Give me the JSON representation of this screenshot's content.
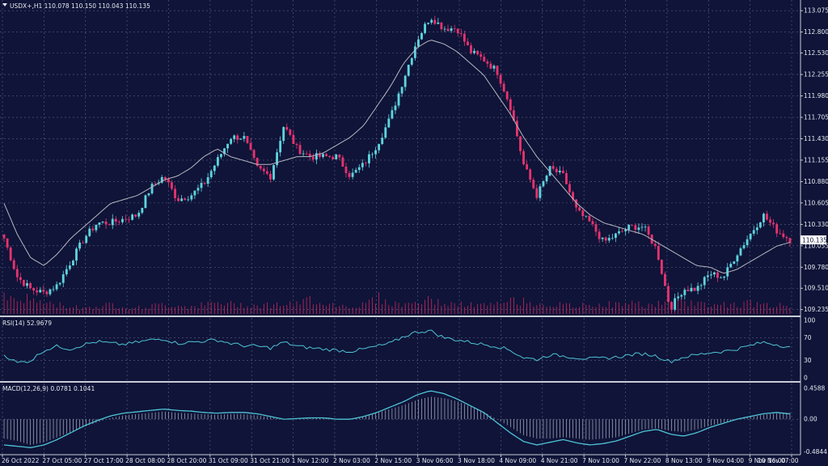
{
  "symbol_header": "USDX+,H1  110.078 110.150 110.043 110.135",
  "rsi_header": "RSI(14) 52.9679",
  "macd_header": "MACD(12,26,9) 0.0781 0.1041",
  "current_price": "110.135",
  "colors": {
    "background": "#0f1438",
    "grid": "#5a6285",
    "bull": "#5fd3de",
    "bear": "#e6336f",
    "ma": "#b8b8c0",
    "volume": "#c8285f",
    "indicator": "#4fc3d6",
    "axis_text": "#e6e8f0",
    "separator": "#c9ccd6",
    "price_tag_bg": "#ffffff",
    "price_tag_text": "#0f1438"
  },
  "chart_data": [
    {
      "type": "candlestick",
      "price_axis_ticks": [
        "113.075",
        "112.800",
        "112.530",
        "112.255",
        "111.980",
        "111.705",
        "111.430",
        "111.155",
        "110.880",
        "110.605",
        "110.330",
        "110.055",
        "109.780",
        "109.510",
        "109.235"
      ],
      "ylim": [
        109.18,
        113.16
      ],
      "time_axis_ticks": [
        "26 Oct 2022",
        "27 Oct 05:00",
        "27 Oct 17:00",
        "28 Oct 08:00",
        "28 Oct 20:00",
        "31 Oct 09:00",
        "31 Oct 21:00",
        "1 Nov 12:00",
        "2 Nov 03:00",
        "2 Nov 15:00",
        "3 Nov 06:00",
        "3 Nov 18:00",
        "4 Nov 09:00",
        "4 Nov 21:00",
        "7 Nov 10:00",
        "7 Nov 22:00",
        "8 Nov 13:00",
        "9 Nov 04:00",
        "9 Nov 16:00",
        "10 Nov 07:00"
      ],
      "close_path": [
        110.15,
        109.65,
        109.5,
        109.45,
        109.55,
        109.85,
        110.15,
        110.35,
        110.35,
        110.4,
        110.45,
        110.8,
        110.95,
        110.65,
        110.7,
        110.85,
        111.15,
        111.45,
        111.45,
        111.05,
        110.95,
        111.6,
        111.3,
        111.2,
        111.2,
        111.2,
        110.95,
        111.1,
        111.35,
        111.7,
        112.2,
        112.7,
        113.0,
        112.85,
        112.85,
        112.55,
        112.45,
        112.3,
        111.85,
        111.1,
        110.7,
        111.05,
        110.95,
        110.5,
        110.35,
        110.1,
        110.2,
        110.3,
        110.3,
        110.0,
        109.25,
        109.5,
        109.5,
        109.7,
        109.65,
        109.95,
        110.2,
        110.45,
        110.25,
        110.135
      ],
      "ma_path": [
        110.6,
        110.2,
        109.9,
        109.8,
        109.95,
        110.15,
        110.3,
        110.45,
        110.6,
        110.65,
        110.7,
        110.8,
        110.9,
        110.95,
        111.05,
        111.2,
        111.3,
        111.2,
        111.15,
        111.1,
        111.1,
        111.15,
        111.2,
        111.2,
        111.25,
        111.35,
        111.45,
        111.6,
        111.85,
        112.1,
        112.4,
        112.6,
        112.7,
        112.65,
        112.55,
        112.4,
        112.25,
        112.0,
        111.75,
        111.45,
        111.2,
        111.0,
        110.8,
        110.6,
        110.45,
        110.35,
        110.3,
        110.25,
        110.2,
        110.1,
        110.0,
        109.9,
        109.8,
        109.78,
        109.7,
        109.75,
        109.85,
        109.95,
        110.05,
        110.1
      ],
      "volume_levels": [
        0.55,
        0.45,
        0.5,
        0.35,
        0.3,
        0.25,
        0.2,
        0.25,
        0.3,
        0.25,
        0.2,
        0.25,
        0.3,
        0.28,
        0.25,
        0.3,
        0.35,
        0.32,
        0.3,
        0.28,
        0.3,
        0.32,
        0.3,
        0.5,
        0.35,
        0.3,
        0.25,
        0.3,
        0.55,
        0.35,
        0.3,
        0.4,
        0.45,
        0.35,
        0.3,
        0.3,
        0.28,
        0.3,
        0.45,
        0.4,
        0.35,
        0.3,
        0.28,
        0.25,
        0.3,
        0.32,
        0.3,
        0.35,
        0.3,
        0.3,
        0.55,
        0.4,
        0.35,
        0.3,
        0.32,
        0.3,
        0.35,
        0.3,
        0.28,
        0.25
      ]
    },
    {
      "type": "line",
      "name": "RSI",
      "ticks": [
        "100",
        "70",
        "30",
        "0"
      ],
      "ylim": [
        0,
        100
      ],
      "values": [
        40,
        26,
        30,
        48,
        55,
        50,
        58,
        63,
        60,
        58,
        62,
        66,
        68,
        60,
        62,
        64,
        66,
        60,
        56,
        55,
        52,
        62,
        55,
        52,
        50,
        48,
        46,
        50,
        55,
        60,
        72,
        80,
        82,
        70,
        66,
        62,
        58,
        55,
        48,
        35,
        32,
        40,
        38,
        35,
        33,
        34,
        36,
        40,
        42,
        38,
        28,
        36,
        40,
        44,
        46,
        50,
        56,
        62,
        58,
        52.97
      ]
    },
    {
      "type": "line",
      "name": "MACD",
      "ticks": [
        "0.4588",
        "0.00",
        "-0.4844"
      ],
      "ylim": [
        -0.5,
        0.48
      ],
      "values": [
        -0.38,
        -0.4,
        -0.42,
        -0.38,
        -0.3,
        -0.2,
        -0.1,
        -0.02,
        0.05,
        0.09,
        0.11,
        0.13,
        0.15,
        0.13,
        0.12,
        0.1,
        0.09,
        0.1,
        0.1,
        0.08,
        0.04,
        0.0,
        0.01,
        0.02,
        0.02,
        0.0,
        0.0,
        0.04,
        0.1,
        0.18,
        0.26,
        0.36,
        0.42,
        0.38,
        0.3,
        0.2,
        0.1,
        -0.05,
        -0.2,
        -0.33,
        -0.38,
        -0.34,
        -0.3,
        -0.35,
        -0.38,
        -0.36,
        -0.32,
        -0.25,
        -0.18,
        -0.15,
        -0.22,
        -0.25,
        -0.2,
        -0.12,
        -0.06,
        0.0,
        0.04,
        0.08,
        0.1,
        0.0781
      ],
      "histogram": [
        -0.3,
        -0.34,
        -0.4,
        -0.36,
        -0.28,
        -0.2,
        -0.12,
        -0.05,
        0.02,
        0.06,
        0.08,
        0.1,
        0.12,
        0.1,
        0.09,
        0.08,
        0.07,
        0.08,
        0.08,
        0.06,
        0.03,
        0.0,
        0.01,
        0.02,
        0.02,
        0.0,
        0.01,
        0.05,
        0.1,
        0.16,
        0.22,
        0.3,
        0.35,
        0.33,
        0.28,
        0.2,
        0.12,
        0.0,
        -0.12,
        -0.25,
        -0.3,
        -0.3,
        -0.28,
        -0.3,
        -0.32,
        -0.3,
        -0.28,
        -0.22,
        -0.16,
        -0.14,
        -0.18,
        -0.2,
        -0.16,
        -0.1,
        -0.05,
        0.0,
        0.03,
        0.07,
        0.09,
        0.1041
      ]
    }
  ]
}
